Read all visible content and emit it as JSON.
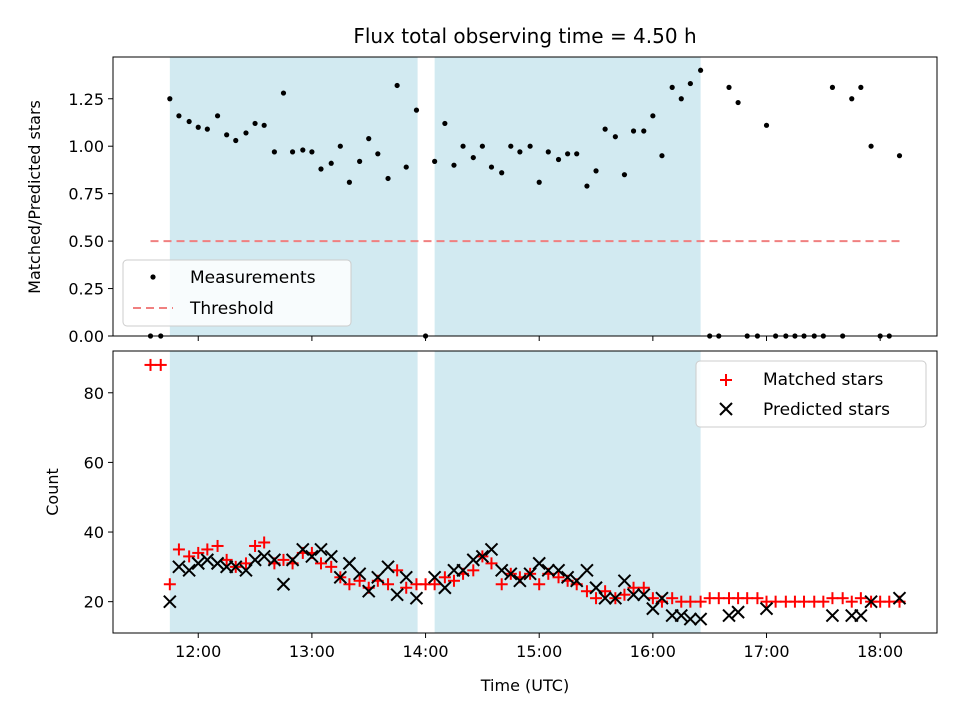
{
  "chart_data": [
    {
      "type": "scatter",
      "title": "Flux total observing time = 4.50 h",
      "xlabel": "",
      "ylabel": "Matched/Predicted stars",
      "xlim": [
        11.25,
        18.5
      ],
      "ylim": [
        0,
        1.47
      ],
      "yticks": [
        0.0,
        0.25,
        0.5,
        0.75,
        1.0,
        1.25
      ],
      "ytick_labels": [
        "0.00",
        "0.25",
        "0.50",
        "0.75",
        "1.00",
        "1.25"
      ],
      "xticks": [
        12,
        13,
        14,
        15,
        16,
        17,
        18
      ],
      "shaded_intervals": [
        [
          11.75,
          13.93
        ],
        [
          14.08,
          16.42
        ]
      ],
      "legend": {
        "position": "lower-left",
        "entries": [
          {
            "label": "Measurements",
            "marker": "dot",
            "color": "#000000"
          },
          {
            "label": "Threshold",
            "marker": "dashed-line",
            "color": "#f08080"
          }
        ]
      },
      "threshold": {
        "value": 0.5,
        "x_range": [
          11.58,
          18.17
        ],
        "color": "#f08080"
      },
      "series": [
        {
          "name": "Measurements",
          "points": [
            [
              11.58,
              0.0
            ],
            [
              11.67,
              0.0
            ],
            [
              11.75,
              1.25
            ],
            [
              11.83,
              1.16
            ],
            [
              11.92,
              1.13
            ],
            [
              12.0,
              1.1
            ],
            [
              12.08,
              1.09
            ],
            [
              12.17,
              1.16
            ],
            [
              12.25,
              1.06
            ],
            [
              12.33,
              1.03
            ],
            [
              12.42,
              1.07
            ],
            [
              12.5,
              1.12
            ],
            [
              12.58,
              1.11
            ],
            [
              12.67,
              0.97
            ],
            [
              12.75,
              1.28
            ],
            [
              12.83,
              0.97
            ],
            [
              12.92,
              0.98
            ],
            [
              13.0,
              0.97
            ],
            [
              13.08,
              0.88
            ],
            [
              13.17,
              0.91
            ],
            [
              13.25,
              1.0
            ],
            [
              13.33,
              0.81
            ],
            [
              13.42,
              0.92
            ],
            [
              13.5,
              1.04
            ],
            [
              13.58,
              0.96
            ],
            [
              13.67,
              0.83
            ],
            [
              13.75,
              1.32
            ],
            [
              13.83,
              0.89
            ],
            [
              13.92,
              1.19
            ],
            [
              14.0,
              0.0
            ],
            [
              14.08,
              0.92
            ],
            [
              14.17,
              1.12
            ],
            [
              14.25,
              0.9
            ],
            [
              14.33,
              1.0
            ],
            [
              14.42,
              0.94
            ],
            [
              14.5,
              1.0
            ],
            [
              14.58,
              0.89
            ],
            [
              14.67,
              0.86
            ],
            [
              14.75,
              1.0
            ],
            [
              14.83,
              0.97
            ],
            [
              14.92,
              1.0
            ],
            [
              15.0,
              0.81
            ],
            [
              15.08,
              0.97
            ],
            [
              15.17,
              0.93
            ],
            [
              15.25,
              0.96
            ],
            [
              15.33,
              0.96
            ],
            [
              15.42,
              0.79
            ],
            [
              15.5,
              0.87
            ],
            [
              15.58,
              1.09
            ],
            [
              15.67,
              1.05
            ],
            [
              15.75,
              0.85
            ],
            [
              15.83,
              1.08
            ],
            [
              15.92,
              1.08
            ],
            [
              16.0,
              1.16
            ],
            [
              16.08,
              0.95
            ],
            [
              16.17,
              1.31
            ],
            [
              16.25,
              1.25
            ],
            [
              16.33,
              1.33
            ],
            [
              16.42,
              1.4
            ],
            [
              16.5,
              0.0
            ],
            [
              16.58,
              0.0
            ],
            [
              16.67,
              1.31
            ],
            [
              16.75,
              1.23
            ],
            [
              16.83,
              0.0
            ],
            [
              16.92,
              0.0
            ],
            [
              17.0,
              1.11
            ],
            [
              17.08,
              0.0
            ],
            [
              17.17,
              0.0
            ],
            [
              17.25,
              0.0
            ],
            [
              17.33,
              0.0
            ],
            [
              17.42,
              0.0
            ],
            [
              17.5,
              0.0
            ],
            [
              17.58,
              1.31
            ],
            [
              17.67,
              0.0
            ],
            [
              17.75,
              1.25
            ],
            [
              17.83,
              1.31
            ],
            [
              17.92,
              1.0
            ],
            [
              18.0,
              0.0
            ],
            [
              18.08,
              0.0
            ],
            [
              18.17,
              0.95
            ]
          ]
        }
      ]
    },
    {
      "type": "scatter",
      "title": "",
      "xlabel": "Time (UTC)",
      "ylabel": "Count",
      "xlim": [
        11.25,
        18.5
      ],
      "ylim": [
        11,
        92
      ],
      "yticks": [
        20,
        40,
        60,
        80
      ],
      "ytick_labels": [
        "20",
        "40",
        "60",
        "80"
      ],
      "xticks": [
        12,
        13,
        14,
        15,
        16,
        17,
        18
      ],
      "xtick_labels": [
        "12:00",
        "13:00",
        "14:00",
        "15:00",
        "16:00",
        "17:00",
        "18:00"
      ],
      "shaded_intervals": [
        [
          11.75,
          13.93
        ],
        [
          14.08,
          16.42
        ]
      ],
      "legend": {
        "position": "top-right",
        "entries": [
          {
            "label": "Matched stars",
            "marker": "plus",
            "color": "#ff0000"
          },
          {
            "label": "Predicted stars",
            "marker": "x",
            "color": "#000000"
          }
        ]
      },
      "series": [
        {
          "name": "Matched stars",
          "color": "#ff0000",
          "points": [
            [
              11.58,
              88
            ],
            [
              11.67,
              88
            ],
            [
              11.75,
              25
            ],
            [
              11.83,
              35
            ],
            [
              11.92,
              33
            ],
            [
              12.0,
              34
            ],
            [
              12.08,
              35
            ],
            [
              12.17,
              36
            ],
            [
              12.25,
              32
            ],
            [
              12.33,
              30
            ],
            [
              12.42,
              31
            ],
            [
              12.5,
              36
            ],
            [
              12.58,
              37
            ],
            [
              12.67,
              31
            ],
            [
              12.75,
              32
            ],
            [
              12.83,
              31
            ],
            [
              12.92,
              34
            ],
            [
              13.0,
              34
            ],
            [
              13.08,
              31
            ],
            [
              13.17,
              30
            ],
            [
              13.25,
              27
            ],
            [
              13.33,
              25
            ],
            [
              13.42,
              26
            ],
            [
              13.5,
              24
            ],
            [
              13.58,
              26
            ],
            [
              13.67,
              25
            ],
            [
              13.75,
              29
            ],
            [
              13.83,
              24
            ],
            [
              13.92,
              25
            ],
            [
              14.0,
              25
            ],
            [
              14.08,
              25
            ],
            [
              14.17,
              27
            ],
            [
              14.25,
              26
            ],
            [
              14.33,
              28
            ],
            [
              14.42,
              29
            ],
            [
              14.5,
              33
            ],
            [
              14.58,
              31
            ],
            [
              14.67,
              25
            ],
            [
              14.75,
              28
            ],
            [
              14.83,
              27
            ],
            [
              14.92,
              28
            ],
            [
              15.0,
              25
            ],
            [
              15.08,
              28
            ],
            [
              15.17,
              27
            ],
            [
              15.25,
              26
            ],
            [
              15.33,
              25
            ],
            [
              15.42,
              23
            ],
            [
              15.5,
              21
            ],
            [
              15.58,
              23
            ],
            [
              15.67,
              21
            ],
            [
              15.75,
              22
            ],
            [
              15.83,
              24
            ],
            [
              15.92,
              24
            ],
            [
              16.0,
              21
            ],
            [
              16.08,
              20
            ],
            [
              16.17,
              21
            ],
            [
              16.25,
              20
            ],
            [
              16.33,
              20
            ],
            [
              16.42,
              20
            ],
            [
              16.5,
              21
            ],
            [
              16.58,
              21
            ],
            [
              16.67,
              21
            ],
            [
              16.75,
              21
            ],
            [
              16.83,
              21
            ],
            [
              16.92,
              21
            ],
            [
              17.0,
              20
            ],
            [
              17.08,
              20
            ],
            [
              17.17,
              20
            ],
            [
              17.25,
              20
            ],
            [
              17.33,
              20
            ],
            [
              17.42,
              20
            ],
            [
              17.5,
              20
            ],
            [
              17.58,
              21
            ],
            [
              17.67,
              21
            ],
            [
              17.75,
              20
            ],
            [
              17.83,
              21
            ],
            [
              17.92,
              20
            ],
            [
              18.0,
              20
            ],
            [
              18.08,
              20
            ],
            [
              18.17,
              20
            ]
          ]
        },
        {
          "name": "Predicted stars",
          "color": "#000000",
          "points": [
            [
              11.75,
              20
            ],
            [
              11.83,
              30
            ],
            [
              11.92,
              29
            ],
            [
              12.0,
              31
            ],
            [
              12.08,
              32
            ],
            [
              12.17,
              31
            ],
            [
              12.25,
              30
            ],
            [
              12.33,
              30
            ],
            [
              12.42,
              29
            ],
            [
              12.5,
              32
            ],
            [
              12.58,
              33
            ],
            [
              12.67,
              32
            ],
            [
              12.75,
              25
            ],
            [
              12.83,
              32
            ],
            [
              12.92,
              35
            ],
            [
              13.0,
              33
            ],
            [
              13.08,
              35
            ],
            [
              13.17,
              33
            ],
            [
              13.25,
              27
            ],
            [
              13.33,
              31
            ],
            [
              13.42,
              28
            ],
            [
              13.5,
              23
            ],
            [
              13.58,
              27
            ],
            [
              13.67,
              30
            ],
            [
              13.75,
              22
            ],
            [
              13.83,
              27
            ],
            [
              13.92,
              21
            ],
            [
              14.08,
              27
            ],
            [
              14.17,
              24
            ],
            [
              14.25,
              29
            ],
            [
              14.33,
              29
            ],
            [
              14.42,
              32
            ],
            [
              14.5,
              33
            ],
            [
              14.58,
              35
            ],
            [
              14.67,
              29
            ],
            [
              14.75,
              28
            ],
            [
              14.83,
              26
            ],
            [
              14.92,
              28
            ],
            [
              15.0,
              31
            ],
            [
              15.08,
              29
            ],
            [
              15.17,
              29
            ],
            [
              15.25,
              27
            ],
            [
              15.33,
              26
            ],
            [
              15.42,
              29
            ],
            [
              15.5,
              24
            ],
            [
              15.58,
              21
            ],
            [
              15.67,
              21
            ],
            [
              15.75,
              26
            ],
            [
              15.83,
              22
            ],
            [
              15.92,
              22
            ],
            [
              16.0,
              18
            ],
            [
              16.08,
              21
            ],
            [
              16.17,
              16
            ],
            [
              16.25,
              16
            ],
            [
              16.33,
              15
            ],
            [
              16.42,
              15
            ],
            [
              16.67,
              16
            ],
            [
              16.75,
              17
            ],
            [
              17.0,
              18
            ],
            [
              17.58,
              16
            ],
            [
              17.75,
              16
            ],
            [
              17.83,
              16
            ],
            [
              17.92,
              20
            ],
            [
              18.17,
              21
            ]
          ]
        }
      ]
    }
  ]
}
